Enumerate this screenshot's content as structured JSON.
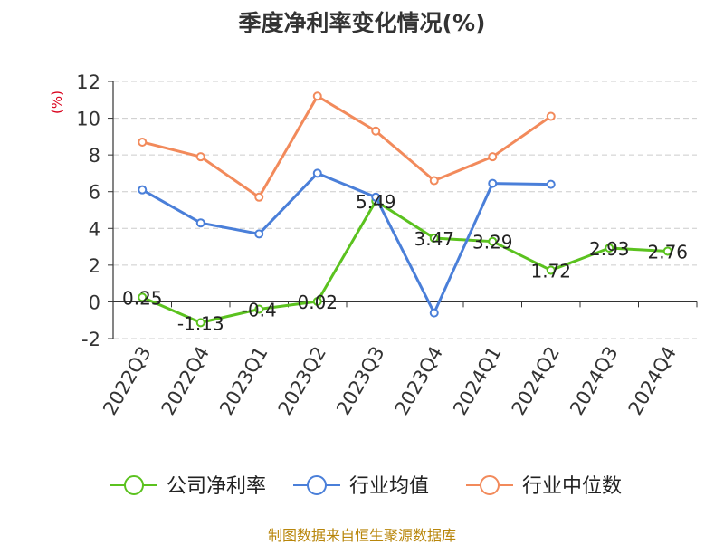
{
  "chart_data": {
    "type": "line",
    "title": "季度净利率变化情况(%)",
    "ylabel": "(%)",
    "xlabel": "",
    "categories": [
      "2022Q3",
      "2022Q4",
      "2023Q1",
      "2023Q2",
      "2023Q3",
      "2023Q4",
      "2024Q1",
      "2024Q2",
      "2024Q3",
      "2024Q4"
    ],
    "ylim": [
      -2,
      12
    ],
    "yticks": [
      -2,
      0,
      2,
      4,
      6,
      8,
      10,
      12
    ],
    "grid": true,
    "legend_position": "bottom",
    "series": [
      {
        "name": "公司净利率",
        "color": "#5bc21f",
        "values": [
          0.25,
          -1.13,
          -0.4,
          0.02,
          5.49,
          3.47,
          3.29,
          1.72,
          2.93,
          2.76
        ],
        "labels": [
          "0.25",
          "-1.13",
          "-0.4",
          "0.02",
          "5.49",
          "3.47",
          "3.29",
          "1.72",
          "2.93",
          "2.76"
        ]
      },
      {
        "name": "行业均值",
        "color": "#4a7fd9",
        "values": [
          6.1,
          4.3,
          3.7,
          7.0,
          5.7,
          -0.6,
          6.45,
          6.4,
          null,
          null
        ]
      },
      {
        "name": "行业中位数",
        "color": "#f28a5b",
        "values": [
          8.7,
          7.9,
          5.7,
          11.2,
          9.3,
          6.6,
          7.9,
          10.1,
          null,
          null
        ]
      }
    ],
    "source": "制图数据来自恒生聚源数据库"
  }
}
